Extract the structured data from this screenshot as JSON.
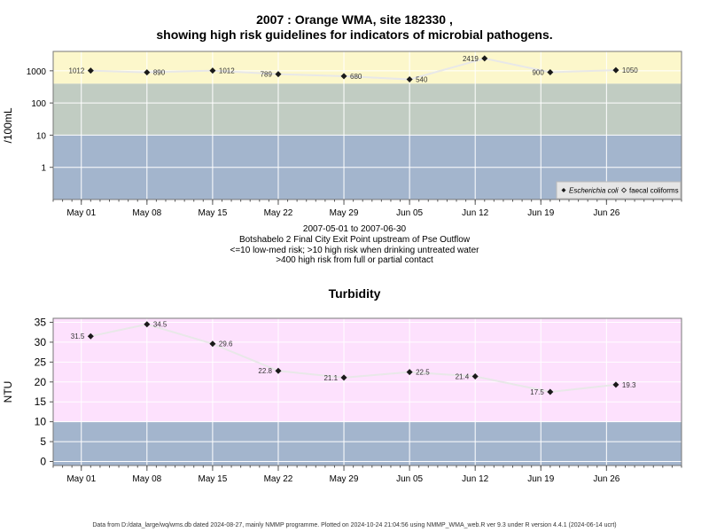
{
  "title_line1": "2007 : Orange WMA, site 182330 ,",
  "title_line2": "showing high risk guidelines for indicators of microbial pathogens.",
  "sub_lines": [
    "2007-05-01 to 2007-06-30",
    "Botshabelo 2 Final City Exit Point upstream of Pse Outflow",
    "<=10 low-med risk; >10 high risk when drinking untreated water",
    ">400 high risk from full or partial contact"
  ],
  "footer": "Data from D:/data_large/wq/wms.db dated 2024-08-27, mainly NMMP programme. Plotted on 2024-10-24 21:04:56 using NMMP_WMA_web.R ver 9.3 under R version 4.4.1 (2024-06-14 ucrt)",
  "colors": {
    "low_band": "#a3b5cd",
    "mid_band": "#c1ccc2",
    "high_band": "#fcf7cb",
    "turb_high": "#fde1fd",
    "line": "#e8e8e8",
    "grid": "#ffffff"
  },
  "chart_data": [
    {
      "type": "line",
      "title": "",
      "xlabel": "",
      "ylabel": "/100mL",
      "y_scale": "log",
      "ylim": [
        0.1,
        4000
      ],
      "yticks": [
        1,
        10,
        100,
        1000
      ],
      "ytick_labels": [
        "1",
        "10",
        "100",
        "1000"
      ],
      "xlim": [
        "2007-04-28",
        "2007-07-04"
      ],
      "xticks": [
        "2007-05-01",
        "2007-05-08",
        "2007-05-15",
        "2007-05-22",
        "2007-05-29",
        "2007-06-05",
        "2007-06-12",
        "2007-06-19",
        "2007-06-26"
      ],
      "xtick_labels": [
        "May 01",
        "May 08",
        "May 15",
        "May 22",
        "May 29",
        "Jun 05",
        "Jun 12",
        "Jun 19",
        "Jun 26"
      ],
      "bands": [
        {
          "from": 0.1,
          "to": 10,
          "color": "#a3b5cd"
        },
        {
          "from": 10,
          "to": 400,
          "color": "#c1ccc2"
        },
        {
          "from": 400,
          "to": 4000,
          "color": "#fcf7cb"
        }
      ],
      "grid": true,
      "legend": {
        "placement": "bottom-right",
        "entries": [
          "Escherichia coli",
          "faecal coliforms"
        ]
      },
      "series": [
        {
          "name": "Escherichia coli",
          "x": [
            "2007-05-02",
            "2007-05-08",
            "2007-05-15",
            "2007-05-22",
            "2007-05-29",
            "2007-06-05",
            "2007-06-13",
            "2007-06-20",
            "2007-06-27"
          ],
          "values": [
            1012,
            890,
            1012,
            789,
            680,
            540,
            2419,
            900,
            1050
          ],
          "labels": [
            "1012",
            "890",
            "1012",
            "789",
            "680",
            "540",
            "2419",
            "900",
            "1050"
          ],
          "label_side": [
            "left",
            "right",
            "right",
            "left",
            "right",
            "right",
            "left",
            "left",
            "right"
          ]
        }
      ]
    },
    {
      "type": "line",
      "title": "Turbidity",
      "xlabel": "",
      "ylabel": "NTU",
      "ylim": [
        -1,
        36
      ],
      "yticks": [
        0,
        5,
        10,
        15,
        20,
        25,
        30,
        35
      ],
      "ytick_labels": [
        "0",
        "5",
        "10",
        "15",
        "20",
        "25",
        "30",
        "35"
      ],
      "xlim": [
        "2007-04-28",
        "2007-07-04"
      ],
      "xticks": [
        "2007-05-01",
        "2007-05-08",
        "2007-05-15",
        "2007-05-22",
        "2007-05-29",
        "2007-06-05",
        "2007-06-12",
        "2007-06-19",
        "2007-06-26"
      ],
      "xtick_labels": [
        "May 01",
        "May 08",
        "May 15",
        "May 22",
        "May 29",
        "Jun 05",
        "Jun 12",
        "Jun 19",
        "Jun 26"
      ],
      "bands": [
        {
          "from": -1,
          "to": 10,
          "color": "#a3b5cd"
        },
        {
          "from": 10,
          "to": 36,
          "color": "#fde1fd"
        }
      ],
      "grid": true,
      "series": [
        {
          "x": [
            "2007-05-02",
            "2007-05-08",
            "2007-05-15",
            "2007-05-22",
            "2007-05-29",
            "2007-06-05",
            "2007-06-12",
            "2007-06-20",
            "2007-06-27"
          ],
          "values": [
            31.5,
            34.5,
            29.6,
            22.8,
            21.1,
            22.5,
            21.4,
            17.5,
            19.3
          ],
          "labels": [
            "31.5",
            "34.5",
            "29.6",
            "22.8",
            "21.1",
            "22.5",
            "21.4",
            "17.5",
            "19.3"
          ],
          "label_side": [
            "left",
            "right",
            "right",
            "left",
            "left",
            "right",
            "left",
            "left",
            "right"
          ]
        }
      ]
    }
  ]
}
